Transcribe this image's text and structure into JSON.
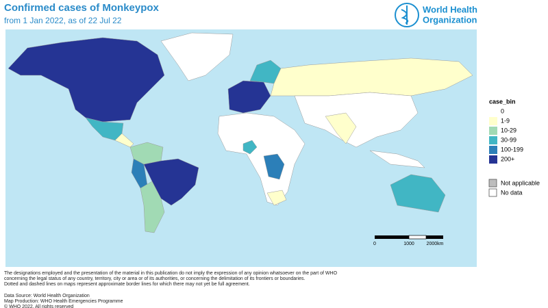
{
  "header": {
    "title": "Confirmed cases of Monkeypox",
    "subtitle": "from 1 Jan 2022, as of 22 Jul 22",
    "logo_text": [
      "World Health",
      "Organization"
    ]
  },
  "legend": {
    "title": "case_bin",
    "bins": [
      {
        "label": "0",
        "color": "#ffffff"
      },
      {
        "label": "1-9",
        "color": "#ffffcc"
      },
      {
        "label": "10-29",
        "color": "#a1dab4"
      },
      {
        "label": "30-99",
        "color": "#41b6c4"
      },
      {
        "label": "100-199",
        "color": "#2c7fb8"
      },
      {
        "label": "200+",
        "color": "#253494"
      }
    ],
    "other": [
      {
        "label": "Not applicable",
        "color": "#bdbdbd"
      },
      {
        "label": "No data",
        "color": "#ffffff"
      }
    ]
  },
  "scale_bar": {
    "labels": [
      "0",
      "1000",
      "2000km"
    ]
  },
  "footer": {
    "disclaimer": [
      "The designations employed and the presentation of the material in this publication do not imply the expression of any opinion whatsoever on the part of WHO",
      "concerning the legal status of any country, territory, city or area or of its authorities, or concerning the delimitation of its frontiers or boundaries.",
      "Dotted and dashed lines on maps represent approximate border lines for which there may not yet be full agreement."
    ],
    "credits": [
      "Data Source: World Health Organization",
      "Map Production: WHO Health Emergencies Programme",
      "© WHO 2022. All rights reserved"
    ]
  }
}
